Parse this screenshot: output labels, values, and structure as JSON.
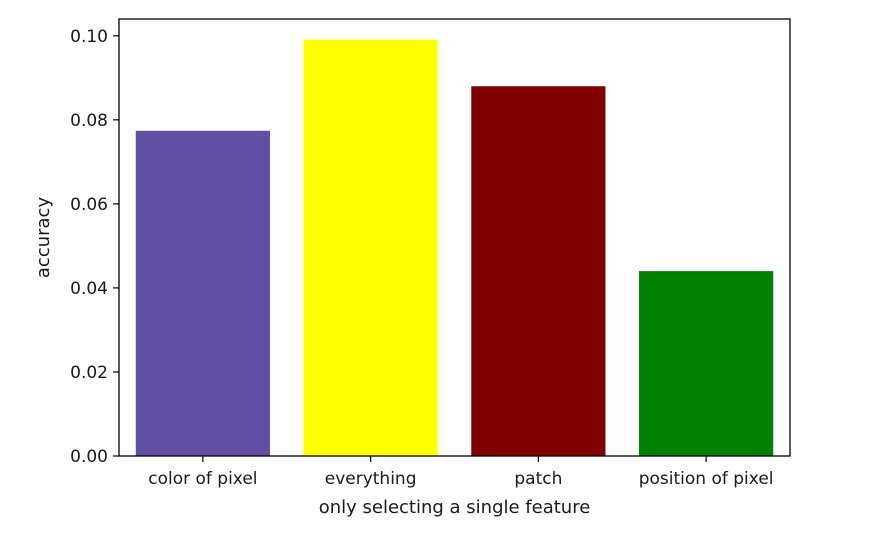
{
  "chart_data": {
    "type": "bar",
    "title": "",
    "xlabel": "only selecting a single feature",
    "ylabel": "accuracy",
    "categories": [
      "color of pixel",
      "everything",
      "patch",
      "position of pixel"
    ],
    "values": [
      0.0774,
      0.0991,
      0.088,
      0.044
    ],
    "colors": [
      "#6050a4",
      "#ffff00",
      "#800000",
      "#008000"
    ],
    "ylim": [
      0,
      0.104
    ],
    "yticks": [
      "0.00",
      "0.02",
      "0.04",
      "0.06",
      "0.08",
      "0.10"
    ],
    "grid": false,
    "legend": "none"
  }
}
